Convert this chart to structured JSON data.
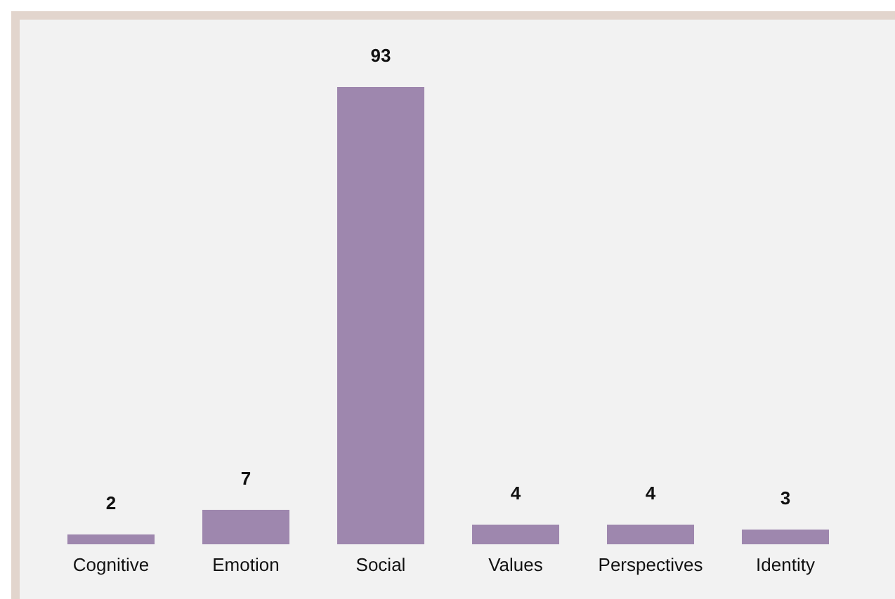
{
  "chart_data": {
    "type": "bar",
    "categories": [
      "Cognitive",
      "Emotion",
      "Social",
      "Values",
      "Perspectives",
      "Identity"
    ],
    "values": [
      2,
      7,
      93,
      4,
      4,
      3
    ],
    "color": "#9e87ae",
    "data_labels": true
  }
}
